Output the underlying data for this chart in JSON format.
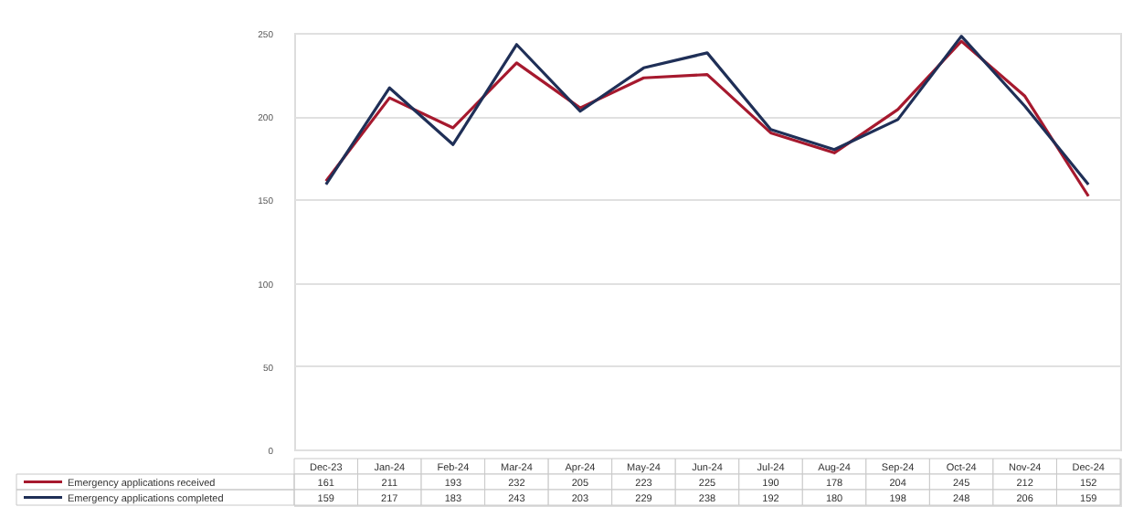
{
  "chart_data": {
    "type": "line",
    "categories": [
      "Dec-23",
      "Jan-24",
      "Feb-24",
      "Mar-24",
      "Apr-24",
      "May-24",
      "Jun-24",
      "Jul-24",
      "Aug-24",
      "Sep-24",
      "Oct-24",
      "Nov-24",
      "Dec-24"
    ],
    "series": [
      {
        "name": "Emergency applications received",
        "color": "#a6192e",
        "values": [
          161,
          211,
          193,
          232,
          205,
          223,
          225,
          190,
          178,
          204,
          245,
          212,
          152
        ]
      },
      {
        "name": "Emergency applications completed",
        "color": "#1f2f57",
        "values": [
          159,
          217,
          183,
          243,
          203,
          229,
          238,
          192,
          180,
          198,
          248,
          206,
          159
        ]
      }
    ],
    "ylim": [
      0,
      250
    ],
    "yticks": [
      0,
      50,
      100,
      150,
      200,
      250
    ],
    "grid": "y",
    "legend": "bottom left",
    "data_labels": true,
    "marker": "none",
    "line_style": "solid"
  }
}
